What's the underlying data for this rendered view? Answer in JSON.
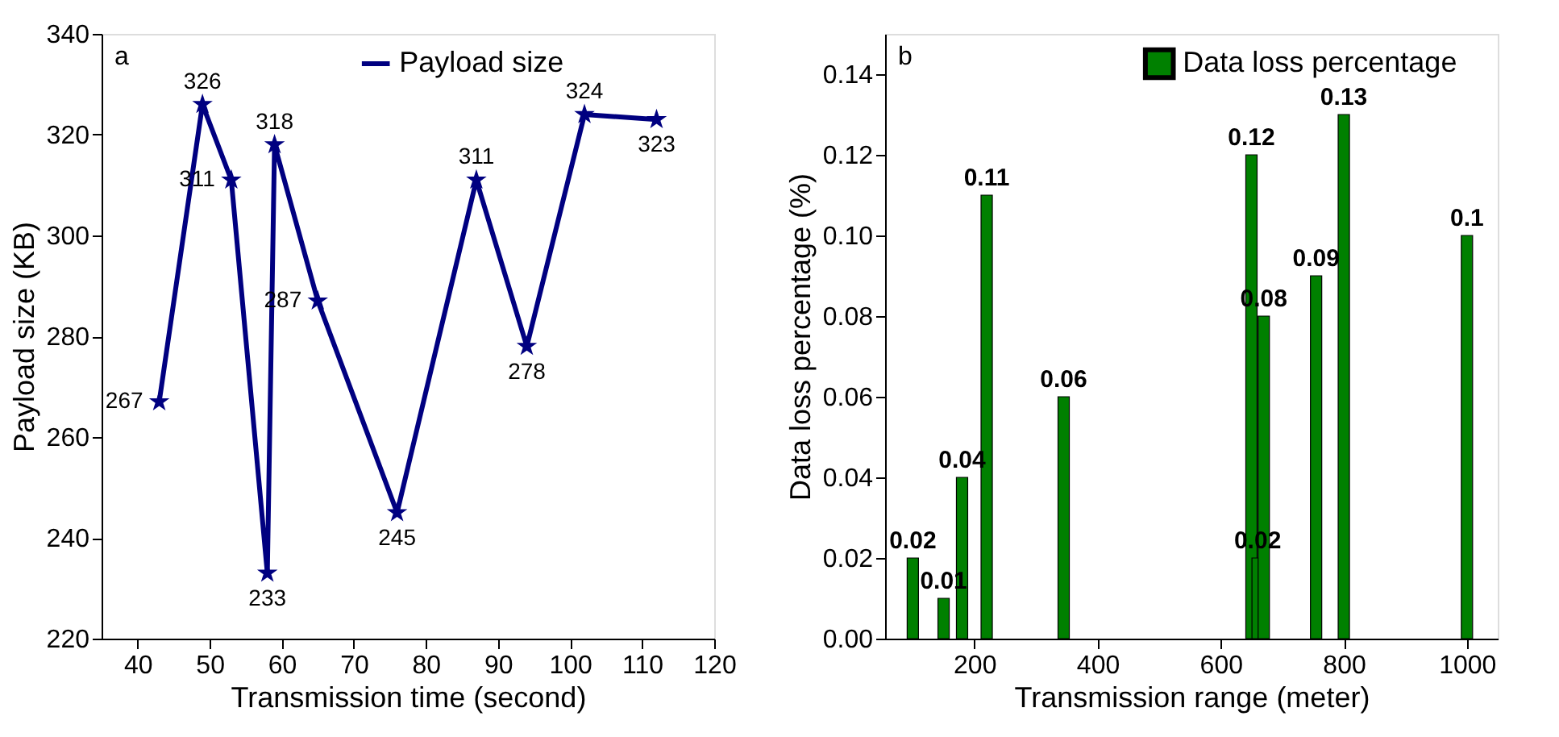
{
  "chart_data": [
    {
      "type": "line",
      "xlabel": "Transmission time (second)",
      "ylabel": "Payload size (KB)",
      "annotations": [
        "a"
      ],
      "x": [
        43,
        49,
        53,
        58,
        59,
        65,
        76,
        87,
        94,
        102,
        112
      ],
      "series": [
        {
          "name": "Payload size",
          "color": "#000080",
          "values": [
            267,
            326,
            311,
            233,
            318,
            287,
            245,
            311,
            278,
            324,
            323
          ]
        }
      ],
      "xlim": [
        35,
        120
      ],
      "xticks": [
        40,
        50,
        60,
        70,
        80,
        90,
        100,
        110,
        120
      ],
      "ylim": [
        220,
        340
      ],
      "yticks": [
        220,
        240,
        260,
        280,
        300,
        320,
        340
      ],
      "marker": "star",
      "data_labels": true,
      "legend": "top",
      "grid": false
    },
    {
      "type": "bar",
      "xlabel": "Transmission range (meter)",
      "ylabel": "Data loss percentage (%)",
      "annotations": [
        "b"
      ],
      "x": [
        100,
        150,
        180,
        220,
        345,
        650,
        660,
        670,
        755,
        800,
        1000
      ],
      "series": [
        {
          "name": "Data loss percentage",
          "color": "#008000",
          "values": [
            0.02,
            0.01,
            0.04,
            0.11,
            0.06,
            0.12,
            0.02,
            0.08,
            0.09,
            0.13,
            0.1
          ]
        }
      ],
      "xlim": [
        55,
        1050
      ],
      "xticks": [
        200,
        400,
        600,
        800,
        1000
      ],
      "ylim": [
        0,
        0.15
      ],
      "yticks": [
        "0.00",
        0.02,
        0.04,
        0.06,
        0.08,
        "0.10",
        0.12,
        0.14
      ],
      "data_labels": true,
      "legend": "top",
      "grid": false
    }
  ]
}
